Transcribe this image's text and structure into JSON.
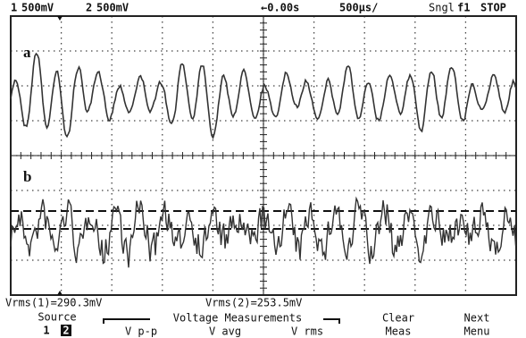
{
  "status_bar": {
    "ch1": "1",
    "ch1_scale": "500mV",
    "ch2": "2",
    "ch2_scale": "500mV",
    "delay": "←0.00s",
    "timebase": "500µs/",
    "mode": "Sngl",
    "trigger": "f1",
    "state": "STOP"
  },
  "traces": [
    {
      "label": "a"
    },
    {
      "label": "b"
    }
  ],
  "measurements": [
    "Vrms(1)=290.3mV",
    "Vrms(2)=253.5mV"
  ],
  "softkeys": {
    "source": {
      "label": "Source",
      "options": [
        "1",
        "2"
      ]
    },
    "group": "Voltage Measurements",
    "keys": [
      "V p-p",
      "V avg",
      "V rms"
    ],
    "clear": [
      "Clear",
      "Meas"
    ],
    "next": [
      "Next",
      "Menu"
    ]
  }
}
